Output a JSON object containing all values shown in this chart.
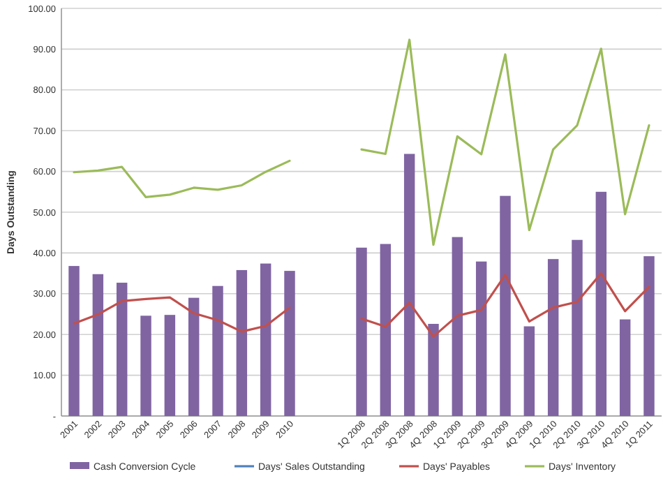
{
  "chart_data": {
    "type": "bar",
    "ylabel": "Days Outstanding",
    "categories": [
      "2001",
      "2002",
      "2003",
      "2004",
      "2005",
      "2006",
      "2007",
      "2008",
      "2009",
      "2010",
      null,
      null,
      "1Q 2008",
      "2Q 2008",
      "3Q 2008",
      "4Q 2008",
      "1Q 2009",
      "2Q 2009",
      "3Q 2009",
      "4Q 2009",
      "1Q 2010",
      "2Q 2010",
      "3Q 2010",
      "4Q 2010",
      "1Q 2011"
    ],
    "series": [
      {
        "name": "Cash Conversion Cycle",
        "color": "#8064a2",
        "values": [
          36.8,
          34.8,
          32.7,
          24.6,
          24.8,
          29.0,
          31.9,
          35.8,
          37.4,
          35.6,
          null,
          null,
          41.3,
          42.2,
          64.3,
          22.6,
          43.9,
          37.9,
          54.0,
          22.0,
          38.5,
          43.2,
          55.0,
          23.7,
          39.2
        ]
      },
      {
        "name": "Days' Sales Outstanding",
        "type": "line",
        "color": "#4f81bd",
        "values": [
          null,
          null,
          null,
          null,
          null,
          null,
          null,
          null,
          null,
          null,
          null,
          null,
          null,
          null,
          null,
          null,
          null,
          null,
          null,
          null,
          null,
          null,
          null,
          null,
          null
        ]
      },
      {
        "name": "Days' Payables",
        "type": "line",
        "color": "#c0504d",
        "values": [
          22.7,
          24.9,
          28.2,
          28.7,
          29.1,
          25.2,
          23.5,
          20.7,
          22.1,
          26.6,
          null,
          null,
          23.9,
          21.9,
          27.8,
          19.5,
          24.6,
          26.0,
          34.6,
          23.2,
          26.6,
          28.0,
          35.0,
          25.7,
          31.7
        ]
      },
      {
        "name": "Days' Inventory",
        "type": "line",
        "color": "#9bbb59",
        "values": [
          59.8,
          60.2,
          61.1,
          53.7,
          54.3,
          56.0,
          55.5,
          56.6,
          59.9,
          62.6,
          null,
          null,
          65.4,
          64.3,
          92.3,
          42.0,
          68.6,
          64.2,
          88.7,
          45.6,
          65.4,
          71.3,
          90.1,
          49.5,
          71.3
        ]
      }
    ],
    "ylim": [
      0,
      100
    ],
    "yticks": [
      {
        "value": 0,
        "label": "-"
      },
      {
        "value": 10,
        "label": "10.00"
      },
      {
        "value": 20,
        "label": "20.00"
      },
      {
        "value": 30,
        "label": "30.00"
      },
      {
        "value": 40,
        "label": "40.00"
      },
      {
        "value": 50,
        "label": "50.00"
      },
      {
        "value": 60,
        "label": "60.00"
      },
      {
        "value": 70,
        "label": "70.00"
      },
      {
        "value": 80,
        "label": "80.00"
      },
      {
        "value": 90,
        "label": "90.00"
      },
      {
        "value": 100,
        "label": "100.00"
      }
    ],
    "grid": "y",
    "legend": "bottom",
    "marker": "none",
    "line_style": "solid"
  }
}
